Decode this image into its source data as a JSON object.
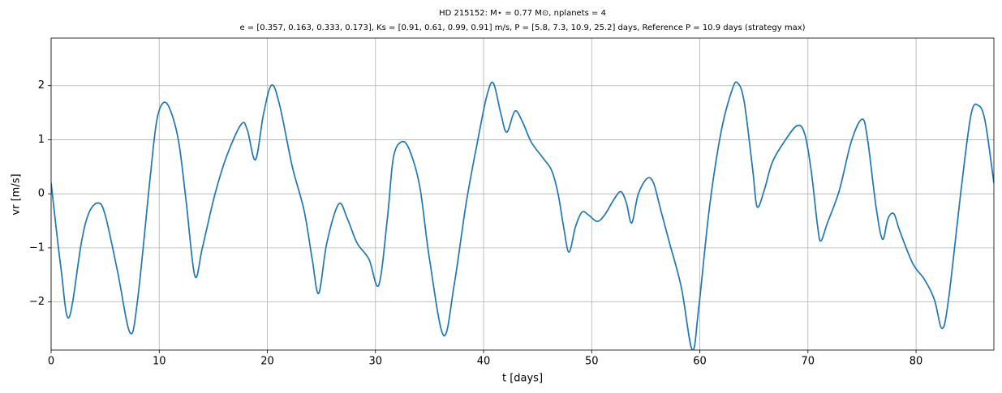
{
  "chart_data": {
    "type": "line",
    "title": "HD 215152: M⋆ = 0.77 M⊙, nplanets = 4",
    "subtitle": "e = [0.357, 0.163, 0.333, 0.173], Ks = [0.91, 0.61, 0.99, 0.91] m/s, P = [5.8, 7.3, 10.9, 25.2] days, Reference P = 10.9 days (strategy max)",
    "x_label": "t [days]",
    "y_label": "vr [m/s]",
    "xlim": [
      0,
      87.2
    ],
    "ylim": [
      -2.89,
      2.88
    ],
    "xticks": [
      0,
      10,
      20,
      30,
      40,
      50,
      60,
      70,
      80
    ],
    "yticks": [
      {
        "value": -2,
        "label": "−2"
      },
      {
        "value": -1,
        "label": "−1"
      },
      0,
      1,
      2
    ],
    "grid": true,
    "x": [
      0,
      0.9,
      1.65,
      2.8,
      3.5,
      4.35,
      5.0,
      6.15,
      7.3,
      8.0,
      9.15,
      9.75,
      10.35,
      11.0,
      11.8,
      12.5,
      13.3,
      14.0,
      15.15,
      16.3,
      17.6,
      18.15,
      18.9,
      19.65,
      20.4,
      21.15,
      22.3,
      23.4,
      24.15,
      24.75,
      25.5,
      26.6,
      27.4,
      28.3,
      29.4,
      30.3,
      31.1,
      31.65,
      32.4,
      33.15,
      34.1,
      35.0,
      36.3,
      37.3,
      38.4,
      39.5,
      40.3,
      40.9,
      41.6,
      42.15,
      42.9,
      43.6,
      44.4,
      45.5,
      46.3,
      46.9,
      47.4,
      47.9,
      48.5,
      49.1,
      49.7,
      50.5,
      51.2,
      52.1,
      52.7,
      53.2,
      53.7,
      54.3,
      55.1,
      55.7,
      56.4,
      57.2,
      58.3,
      59.3,
      59.9,
      60.9,
      62.0,
      63.0,
      63.5,
      64.1,
      64.9,
      65.3,
      65.95,
      66.7,
      67.8,
      69.0,
      69.7,
      70.3,
      70.9,
      71.2,
      71.8,
      72.9,
      74.0,
      75.0,
      75.5,
      76.3,
      76.9,
      77.4,
      77.95,
      78.5,
      79.7,
      80.8,
      81.7,
      82.4,
      83.0,
      84.2,
      85.1,
      85.8,
      86.4,
      87.2
    ],
    "series": [
      {
        "name": "vr",
        "color": "#1f77b4",
        "values": [
          0.2,
          -1.36,
          -2.29,
          -0.9,
          -0.35,
          -0.17,
          -0.39,
          -1.44,
          -2.57,
          -1.96,
          0.28,
          1.33,
          1.68,
          1.56,
          0.96,
          -0.16,
          -1.52,
          -0.99,
          -0.01,
          0.73,
          1.29,
          1.18,
          0.63,
          1.48,
          2.01,
          1.63,
          0.51,
          -0.31,
          -1.21,
          -1.84,
          -0.91,
          -0.19,
          -0.46,
          -0.91,
          -1.21,
          -1.69,
          -0.46,
          0.66,
          0.96,
          0.81,
          0.13,
          -1.21,
          -2.62,
          -1.66,
          -0.16,
          1.03,
          1.81,
          2.05,
          1.48,
          1.14,
          1.53,
          1.33,
          0.96,
          0.66,
          0.43,
          -0.01,
          -0.61,
          -1.08,
          -0.61,
          -0.34,
          -0.39,
          -0.51,
          -0.39,
          -0.09,
          0.04,
          -0.16,
          -0.54,
          -0.01,
          0.28,
          0.21,
          -0.31,
          -0.91,
          -1.74,
          -2.89,
          -2.11,
          -0.24,
          1.18,
          1.93,
          2.05,
          1.71,
          0.43,
          -0.24,
          0.06,
          0.58,
          0.96,
          1.26,
          1.11,
          0.43,
          -0.61,
          -0.87,
          -0.54,
          0.06,
          0.96,
          1.38,
          1.03,
          -0.24,
          -0.84,
          -0.46,
          -0.37,
          -0.69,
          -1.29,
          -1.59,
          -1.96,
          -2.49,
          -1.96,
          0.13,
          1.48,
          1.63,
          1.33,
          0.2
        ]
      }
    ]
  }
}
